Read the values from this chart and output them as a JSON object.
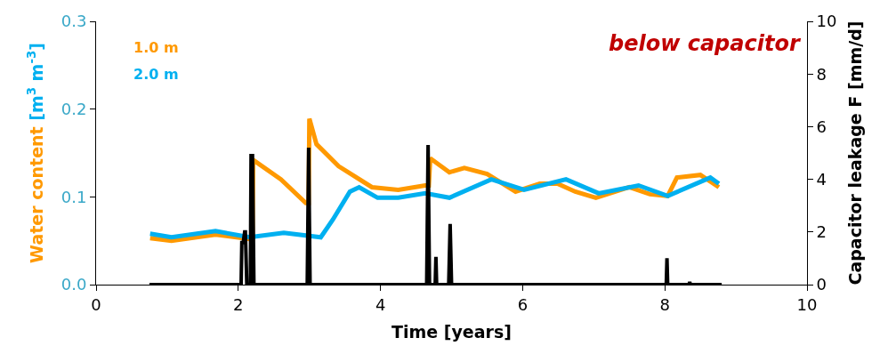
{
  "chart_data": {
    "type": "line",
    "title": "below capacitor",
    "xlabel": "Time [years]",
    "ylabel": "Water content [m$^{3}$ m$^{-3}$]",
    "y2label": "Capacitor leakage F [mm/d]",
    "xlim": [
      0,
      10
    ],
    "xticks": [
      0,
      2,
      4,
      6,
      8,
      10
    ],
    "ylim": [
      0,
      0.3
    ],
    "yticks": [
      {
        "value": 0,
        "label": "0.0"
      },
      0.1,
      0.2,
      0.3
    ],
    "y2lim": [
      0,
      10
    ],
    "y2ticks": [
      0,
      2,
      4,
      6,
      8,
      10
    ],
    "legend": "top left",
    "marker": "none",
    "line_style": "solid",
    "series": [
      {
        "name": "1.0 m",
        "color": "#ff9900",
        "x": [
          0.76,
          1.06,
          1.68,
          2.16,
          2.2,
          2.21,
          2.6,
          2.95,
          2.99,
          3.0,
          3.1,
          3.41,
          3.88,
          4.25,
          4.63,
          4.68,
          4.7,
          4.97,
          5.18,
          5.5,
          5.9,
          6.24,
          6.49,
          6.74,
          7.03,
          7.5,
          7.79,
          8.04,
          8.17,
          8.5,
          8.76
        ],
        "values": [
          0.053,
          0.05,
          0.057,
          0.052,
          0.052,
          0.142,
          0.12,
          0.093,
          0.093,
          0.189,
          0.16,
          0.135,
          0.111,
          0.108,
          0.113,
          0.113,
          0.144,
          0.128,
          0.133,
          0.126,
          0.106,
          0.115,
          0.115,
          0.106,
          0.099,
          0.111,
          0.103,
          0.101,
          0.122,
          0.125,
          0.111
        ]
      },
      {
        "name": "2.0 m",
        "color": "#00b0f0",
        "x": [
          0.76,
          1.06,
          1.68,
          2.16,
          2.64,
          3.16,
          3.33,
          3.57,
          3.7,
          3.96,
          4.25,
          4.63,
          4.97,
          5.56,
          6.02,
          6.61,
          7.07,
          7.63,
          8.04,
          8.64,
          8.76
        ],
        "values": [
          0.058,
          0.054,
          0.061,
          0.054,
          0.059,
          0.054,
          0.074,
          0.106,
          0.111,
          0.099,
          0.099,
          0.104,
          0.099,
          0.12,
          0.108,
          0.12,
          0.104,
          0.113,
          0.101,
          0.122,
          0.115
        ]
      },
      {
        "color": "#000000",
        "axis": "y2",
        "x": [
          0.75,
          2.04,
          2.05,
          2.07,
          2.09,
          2.1,
          2.12,
          2.14,
          2.17,
          2.18,
          2.2,
          2.22,
          2.97,
          2.99,
          3.01,
          4.65,
          4.67,
          4.69,
          4.77,
          4.78,
          4.79,
          4.96,
          4.98,
          5.0,
          8.02,
          8.03,
          8.04,
          8.34,
          8.35,
          8.36,
          8.8
        ],
        "values": [
          0,
          0,
          1.6,
          1.6,
          2.0,
          2.0,
          0,
          0,
          0,
          4.9,
          4.9,
          0,
          0,
          5.2,
          0,
          0,
          5.3,
          0,
          0,
          1.05,
          0,
          0,
          2.3,
          0,
          0,
          1.0,
          0,
          0,
          0.1,
          0,
          0
        ]
      }
    ]
  }
}
